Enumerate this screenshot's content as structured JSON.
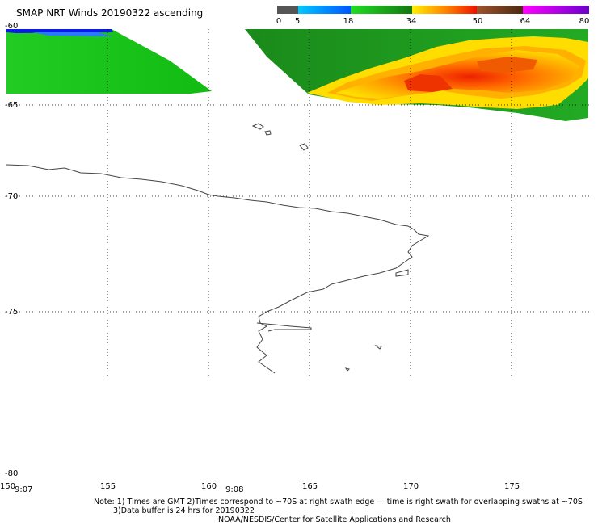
{
  "title": "SMAP NRT Winds 20190322 ascending",
  "legend": {
    "ticks": [
      "0",
      "5",
      "18",
      "34",
      "50",
      "64",
      "80"
    ],
    "tick_values": [
      0,
      5,
      18,
      34,
      50,
      64,
      80
    ],
    "colors": [
      "#4a4a4a",
      "#1a8cff",
      "#22cc22",
      "#ffdd00",
      "#ff5500",
      "#ee1111",
      "#a0522d",
      "#cc00cc"
    ],
    "color_stops": [
      0,
      5,
      18,
      34,
      42,
      50,
      64,
      80
    ]
  },
  "map": {
    "lat_labels": [
      "-60",
      "-65",
      "-70",
      "-75",
      "-80"
    ],
    "lon_labels": [
      "150",
      "155",
      "160",
      "165",
      "170",
      "175"
    ],
    "swath_times": [
      "9:07",
      "9:08"
    ]
  },
  "notes": {
    "line1": "Note: 1) Times are GMT 2)Times correspond to ~70S at right swath edge — time is right swath for overlapping swaths at ~70S",
    "line2": "3)Data buffer is 24 hrs for 20190322",
    "line3": "NOAA/NESDIS/Center for Satellite Applications and Research"
  }
}
